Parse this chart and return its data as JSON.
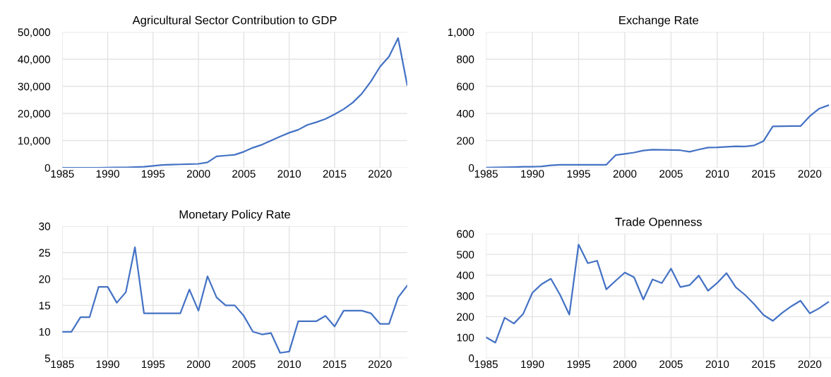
{
  "chart_data": [
    {
      "type": "line",
      "title": "Agricultural Sector Contribution to GDP",
      "color": "#4472c4",
      "grid": true,
      "x": [
        1985,
        1986,
        1987,
        1988,
        1989,
        1990,
        1991,
        1992,
        1993,
        1994,
        1995,
        1996,
        1997,
        1998,
        1999,
        2000,
        2001,
        2002,
        2003,
        2004,
        2005,
        2006,
        2007,
        2008,
        2009,
        2010,
        2011,
        2012,
        2013,
        2014,
        2015,
        2016,
        2017,
        2018,
        2019,
        2020,
        2021,
        2022,
        2023
      ],
      "values": [
        0,
        0,
        0,
        0,
        0,
        50,
        100,
        150,
        250,
        400,
        700,
        1000,
        1150,
        1250,
        1350,
        1450,
        2000,
        4200,
        4500,
        4800,
        5900,
        7400,
        8500,
        10000,
        11500,
        12900,
        14000,
        15800,
        16800,
        18000,
        19700,
        21600,
        24000,
        27300,
        31800,
        37200,
        41000,
        47800,
        30500
      ],
      "xlim": [
        1985,
        2023
      ],
      "xticks": [
        1985,
        1990,
        1995,
        2000,
        2005,
        2010,
        2015,
        2020
      ],
      "ylim": [
        0,
        50000
      ],
      "yticks": [
        0,
        {
          "value": 10000,
          "label": "10,000"
        },
        {
          "value": 20000,
          "label": "20,000"
        },
        {
          "value": 30000,
          "label": "30,000"
        },
        {
          "value": 40000,
          "label": "40,000"
        },
        {
          "value": 50000,
          "label": "50,000"
        }
      ]
    },
    {
      "type": "line",
      "title": "Exchange Rate",
      "color": "#4472c4",
      "grid": true,
      "x": [
        1985,
        1986,
        1987,
        1988,
        1989,
        1990,
        1991,
        1992,
        1993,
        1994,
        1995,
        1996,
        1997,
        1998,
        1999,
        2000,
        2001,
        2002,
        2003,
        2004,
        2005,
        2006,
        2007,
        2008,
        2009,
        2010,
        2011,
        2012,
        2013,
        2014,
        2015,
        2016,
        2017,
        2018,
        2019,
        2020,
        2021,
        2022
      ],
      "values": [
        1,
        2,
        4,
        5,
        7,
        8,
        10,
        18,
        22,
        22,
        22,
        22,
        22,
        22,
        93,
        102,
        112,
        127,
        133,
        132,
        131,
        129,
        118,
        134,
        149,
        150,
        154,
        158,
        157,
        165,
        197,
        305,
        306,
        307,
        307,
        380,
        435,
        460
      ],
      "xlim": [
        1985,
        2022.3
      ],
      "xticks": [
        1985,
        1990,
        1995,
        2000,
        2005,
        2010,
        2015,
        2020
      ],
      "ylim": [
        0,
        1000
      ],
      "yticks": [
        0,
        200,
        400,
        600,
        800,
        {
          "value": 1000,
          "label": "1,000"
        }
      ]
    },
    {
      "type": "line",
      "title": "Monetary Policy Rate",
      "color": "#4472c4",
      "grid": true,
      "x": [
        1985,
        1986,
        1987,
        1988,
        1989,
        1990,
        1991,
        1992,
        1993,
        1994,
        1995,
        1996,
        1997,
        1998,
        1999,
        2000,
        2001,
        2002,
        2003,
        2004,
        2005,
        2006,
        2007,
        2008,
        2009,
        2010,
        2011,
        2012,
        2013,
        2014,
        2015,
        2016,
        2017,
        2018,
        2019,
        2020,
        2021,
        2022,
        2023
      ],
      "values": [
        10,
        10,
        12.75,
        12.75,
        18.5,
        18.5,
        15.5,
        17.5,
        26,
        13.5,
        13.5,
        13.5,
        13.5,
        13.5,
        18,
        14,
        20.5,
        16.5,
        15,
        15,
        13,
        10,
        9.5,
        9.75,
        6,
        6.25,
        12,
        12,
        12,
        13,
        11,
        14,
        14,
        14,
        13.5,
        11.5,
        11.5,
        16.5,
        18.75
      ],
      "xlim": [
        1985,
        2023
      ],
      "xticks": [
        1985,
        1990,
        1995,
        2000,
        2005,
        2010,
        2015,
        2020
      ],
      "ylim": [
        5,
        30
      ],
      "yticks": [
        5,
        10,
        15,
        20,
        25,
        30
      ]
    },
    {
      "type": "line",
      "title": "Trade Openness",
      "color": "#4472c4",
      "grid": true,
      "x": [
        1985,
        1986,
        1987,
        1988,
        1989,
        1990,
        1991,
        1992,
        1993,
        1994,
        1995,
        1996,
        1997,
        1998,
        1999,
        2000,
        2001,
        2002,
        2003,
        2004,
        2005,
        2006,
        2007,
        2008,
        2009,
        2010,
        2011,
        2012,
        2013,
        2014,
        2015,
        2016,
        2017,
        2018,
        2019,
        2020,
        2021,
        2022
      ],
      "values": [
        100,
        75,
        195,
        167,
        213,
        315,
        357,
        383,
        305,
        210,
        548,
        458,
        470,
        332,
        373,
        413,
        390,
        283,
        380,
        362,
        432,
        343,
        352,
        398,
        325,
        363,
        410,
        342,
        305,
        260,
        208,
        180,
        218,
        250,
        277,
        216,
        240,
        270
      ],
      "xlim": [
        1985,
        2022.3
      ],
      "xticks": [
        1985,
        1990,
        1995,
        2000,
        2005,
        2010,
        2015,
        2020
      ],
      "ylim": [
        0,
        600
      ],
      "yticks": [
        0,
        100,
        200,
        300,
        400,
        500,
        600
      ]
    }
  ]
}
